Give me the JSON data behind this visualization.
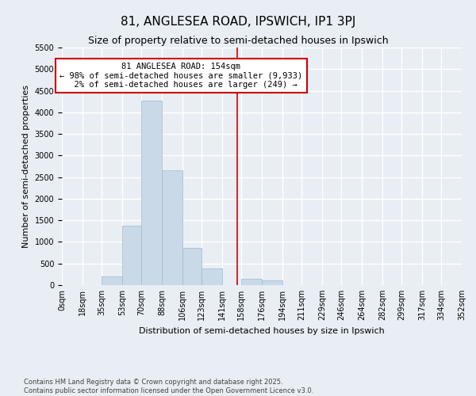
{
  "title": "81, ANGLESEA ROAD, IPSWICH, IP1 3PJ",
  "subtitle": "Size of property relative to semi-detached houses in Ipswich",
  "xlabel": "Distribution of semi-detached houses by size in Ipswich",
  "ylabel": "Number of semi-detached properties",
  "bar_color": "#c9d9e8",
  "bar_edge_color": "#a0b8cc",
  "background_color": "#e8eef4",
  "grid_color": "#ffffff",
  "annotation_line_color": "#cc0000",
  "annotation_box_color": "#cc0000",
  "bins": [
    0,
    18,
    35,
    53,
    70,
    88,
    106,
    123,
    141,
    158,
    176,
    194,
    211,
    229,
    246,
    264,
    282,
    299,
    317,
    334,
    352
  ],
  "bin_labels": [
    "0sqm",
    "18sqm",
    "35sqm",
    "53sqm",
    "70sqm",
    "88sqm",
    "106sqm",
    "123sqm",
    "141sqm",
    "158sqm",
    "176sqm",
    "194sqm",
    "211sqm",
    "229sqm",
    "246sqm",
    "264sqm",
    "282sqm",
    "299sqm",
    "317sqm",
    "334sqm",
    "352sqm"
  ],
  "bar_heights": [
    5,
    5,
    195,
    1380,
    4280,
    2660,
    870,
    380,
    0,
    155,
    115,
    5,
    5,
    5,
    5,
    5,
    5,
    5,
    5,
    5,
    0
  ],
  "property_size": 154,
  "property_label": "81 ANGLESEA ROAD: 154sqm",
  "percent_smaller": 98,
  "count_smaller": 9933,
  "percent_larger": 2,
  "count_larger": 249,
  "ylim": [
    0,
    5500
  ],
  "yticks": [
    0,
    500,
    1000,
    1500,
    2000,
    2500,
    3000,
    3500,
    4000,
    4500,
    5000,
    5500
  ],
  "footer_line1": "Contains HM Land Registry data © Crown copyright and database right 2025.",
  "footer_line2": "Contains public sector information licensed under the Open Government Licence v3.0.",
  "title_fontsize": 11,
  "subtitle_fontsize": 9,
  "label_fontsize": 8,
  "tick_fontsize": 7,
  "annotation_fontsize": 7.5,
  "footer_fontsize": 6
}
